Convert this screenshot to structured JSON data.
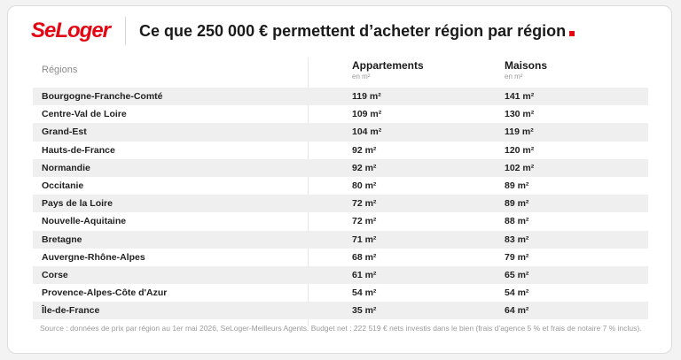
{
  "brand": {
    "logo_text": "SeLoger",
    "accent_color": "#e30613"
  },
  "title": "Ce que 250 000 € permettent d’acheter région par région",
  "table": {
    "header_region": "Régions",
    "header_apartments": "Appartements",
    "header_apartments_unit": "en m²",
    "header_houses": "Maisons",
    "header_houses_unit": "en m²",
    "rows": [
      {
        "region": "Bourgogne-Franche-Comté",
        "apartments": "119 m²",
        "houses": "141 m²"
      },
      {
        "region": "Centre-Val de Loire",
        "apartments": "109 m²",
        "houses": "130 m²"
      },
      {
        "region": "Grand-Est",
        "apartments": "104 m²",
        "houses": "119 m²"
      },
      {
        "region": "Hauts-de-France",
        "apartments": "92 m²",
        "houses": "120 m²"
      },
      {
        "region": "Normandie",
        "apartments": "92 m²",
        "houses": "102 m²"
      },
      {
        "region": "Occitanie",
        "apartments": "80 m²",
        "houses": "89 m²"
      },
      {
        "region": "Pays de la Loire",
        "apartments": "72 m²",
        "houses": "89 m²"
      },
      {
        "region": "Nouvelle-Aquitaine",
        "apartments": "72 m²",
        "houses": "88 m²"
      },
      {
        "region": "Bretagne",
        "apartments": "71 m²",
        "houses": "83 m²"
      },
      {
        "region": "Auvergne-Rhône-Alpes",
        "apartments": "68 m²",
        "houses": "79 m²"
      },
      {
        "region": "Corse",
        "apartments": "61 m²",
        "houses": "65 m²"
      },
      {
        "region": "Provence-Alpes-Côte d'Azur",
        "apartments": "54 m²",
        "houses": "54 m²"
      },
      {
        "region": "Île-de-France",
        "apartments": "35 m²",
        "houses": "64 m²"
      }
    ]
  },
  "source": "Source : données de prix par région au 1er mai 2026, SeLoger-Meilleurs Agents. Budget net : 222 519 € nets investis dans le bien (frais d’agence 5 % et frais de notaire 7 % inclus)."
}
